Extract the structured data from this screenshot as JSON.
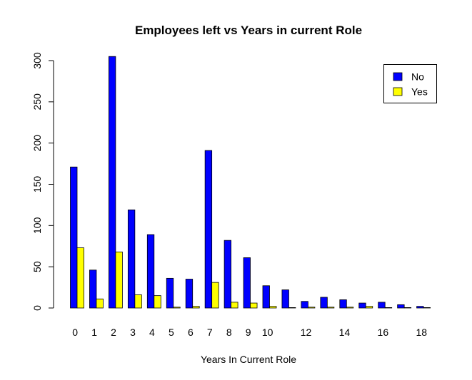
{
  "chart_data": {
    "type": "bar",
    "title": "Employees left vs Years in current Role",
    "xlabel": "Years In Current Role",
    "ylabel": "",
    "ylim": [
      0,
      300
    ],
    "y_ticks": [
      0,
      50,
      100,
      150,
      200,
      250,
      300
    ],
    "categories": [
      "0",
      "1",
      "2",
      "3",
      "4",
      "5",
      "6",
      "7",
      "8",
      "9",
      "10",
      "11",
      "12",
      "13",
      "14",
      "15",
      "16",
      "17",
      "18"
    ],
    "visible_x_tick_labels": [
      "0",
      "1",
      "2",
      "3",
      "4",
      "5",
      "6",
      "7",
      "8",
      "9",
      "10",
      "12",
      "14",
      "16",
      "18"
    ],
    "series": [
      {
        "name": "No",
        "color": "#0000ff",
        "values": [
          171,
          46,
          305,
          119,
          89,
          36,
          35,
          191,
          82,
          61,
          27,
          22,
          8,
          13,
          10,
          6,
          7,
          4,
          2
        ]
      },
      {
        "name": "Yes",
        "color": "#ffff00",
        "values": [
          73,
          11,
          68,
          16,
          15,
          1,
          2,
          31,
          7,
          6,
          2,
          0,
          1,
          1,
          1,
          2,
          0,
          0,
          0
        ]
      }
    ],
    "legend": {
      "position": "top-right",
      "entries": [
        "No",
        "Yes"
      ]
    },
    "grid": false
  }
}
